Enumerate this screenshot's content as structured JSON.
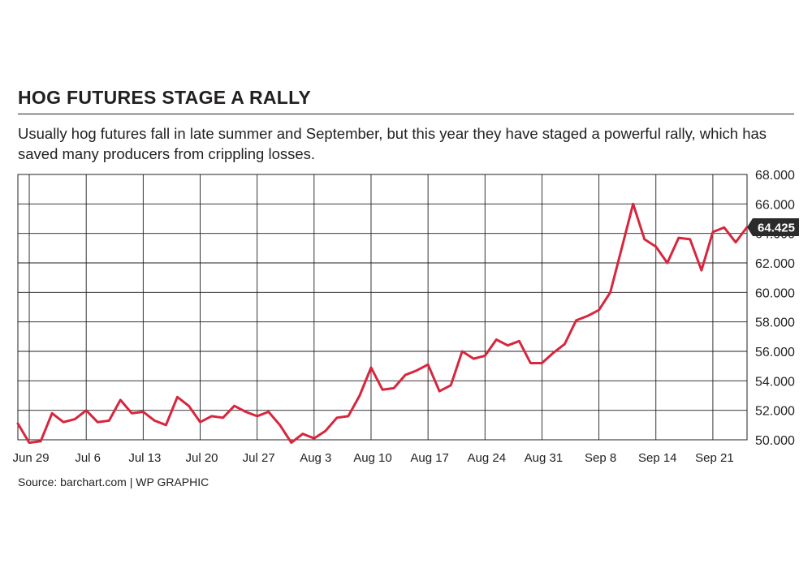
{
  "title": "HOG FUTURES STAGE A RALLY",
  "subtitle": "Usually hog futures fall in late summer and September, but this year they have staged a powerful rally, which has saved many producers from crippling losses.",
  "source": "Source: barchart.com  |  WP GRAPHIC",
  "last_value_label": "64.425",
  "colors": {
    "line": "#d7263d",
    "grid": "#231f20",
    "label_box": "#2b2b2b"
  },
  "chart_data": {
    "type": "line",
    "title": "HOG FUTURES STAGE A RALLY",
    "xlabel": "",
    "ylabel": "",
    "ylim": [
      50,
      68
    ],
    "y_ticks": [
      68,
      66,
      64,
      62,
      60,
      58,
      56,
      54,
      52,
      50
    ],
    "y_tick_labels": [
      "68.000",
      "66.000",
      "64.000",
      "62.000",
      "60.000",
      "58.000",
      "56.000",
      "54.000",
      "52.000",
      "50.000"
    ],
    "x_tick_labels": [
      "Jun 29",
      "Jul 6",
      "Jul 13",
      "Jul 20",
      "Jul 27",
      "Aug 3",
      "Aug 10",
      "Aug 17",
      "Aug 24",
      "Aug 31",
      "Sep 8",
      "Sep 14",
      "Sep 21"
    ],
    "x_tick_index": [
      1,
      6,
      11,
      16,
      21,
      26,
      31,
      36,
      41,
      46,
      51,
      56,
      61
    ],
    "grid": true,
    "y_axis_position": "right",
    "values": [
      51.1,
      49.8,
      49.9,
      51.8,
      51.2,
      51.4,
      52.0,
      51.2,
      51.3,
      52.7,
      51.8,
      51.9,
      51.3,
      51.0,
      52.9,
      52.3,
      51.2,
      51.6,
      51.5,
      52.3,
      51.9,
      51.6,
      51.9,
      51.0,
      49.8,
      50.4,
      50.1,
      50.6,
      51.5,
      51.6,
      53.0,
      54.9,
      53.4,
      53.5,
      54.4,
      54.7,
      55.1,
      53.3,
      53.7,
      56.0,
      55.5,
      55.7,
      56.8,
      56.4,
      56.7,
      55.2,
      55.2,
      55.9,
      56.5,
      58.1,
      58.4,
      58.8,
      60.0,
      63.0,
      66.0,
      63.6,
      63.1,
      62.0,
      63.7,
      63.6,
      61.5,
      64.1,
      64.4,
      63.4,
      64.425
    ]
  }
}
